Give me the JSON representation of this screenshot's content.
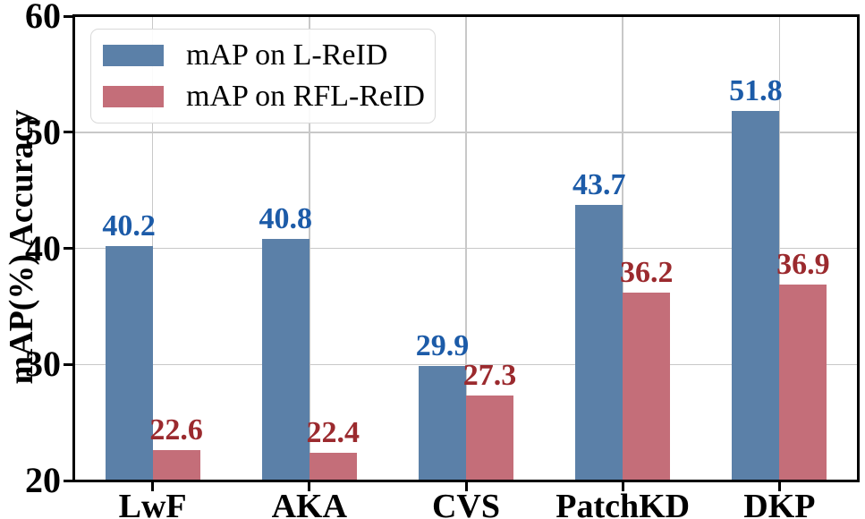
{
  "chart_data": {
    "type": "bar",
    "title": "",
    "xlabel": "",
    "ylabel": "mAP(%) Accuracy",
    "ylim": [
      20,
      60
    ],
    "yticks": [
      20,
      30,
      40,
      50,
      60
    ],
    "grid": true,
    "legend_position": "upper-left",
    "categories": [
      "LwF",
      "AKA",
      "CVS",
      "PatchKD",
      "DKP"
    ],
    "series": [
      {
        "name": "mAP on L-ReID",
        "values": [
          40.2,
          40.8,
          29.9,
          43.7,
          51.8
        ],
        "bar_color": "#5b80a8",
        "value_label_color": "#1c5ba8"
      },
      {
        "name": "mAP on RFL-ReID",
        "values": [
          22.6,
          22.4,
          27.3,
          36.2,
          36.9
        ],
        "bar_color": "#c46e79",
        "value_label_color": "#9b2a2e"
      }
    ],
    "colors": {
      "axis": "#000000",
      "grid": "#c8c8c8",
      "tick_label": "#000000",
      "background": "#ffffff"
    }
  }
}
